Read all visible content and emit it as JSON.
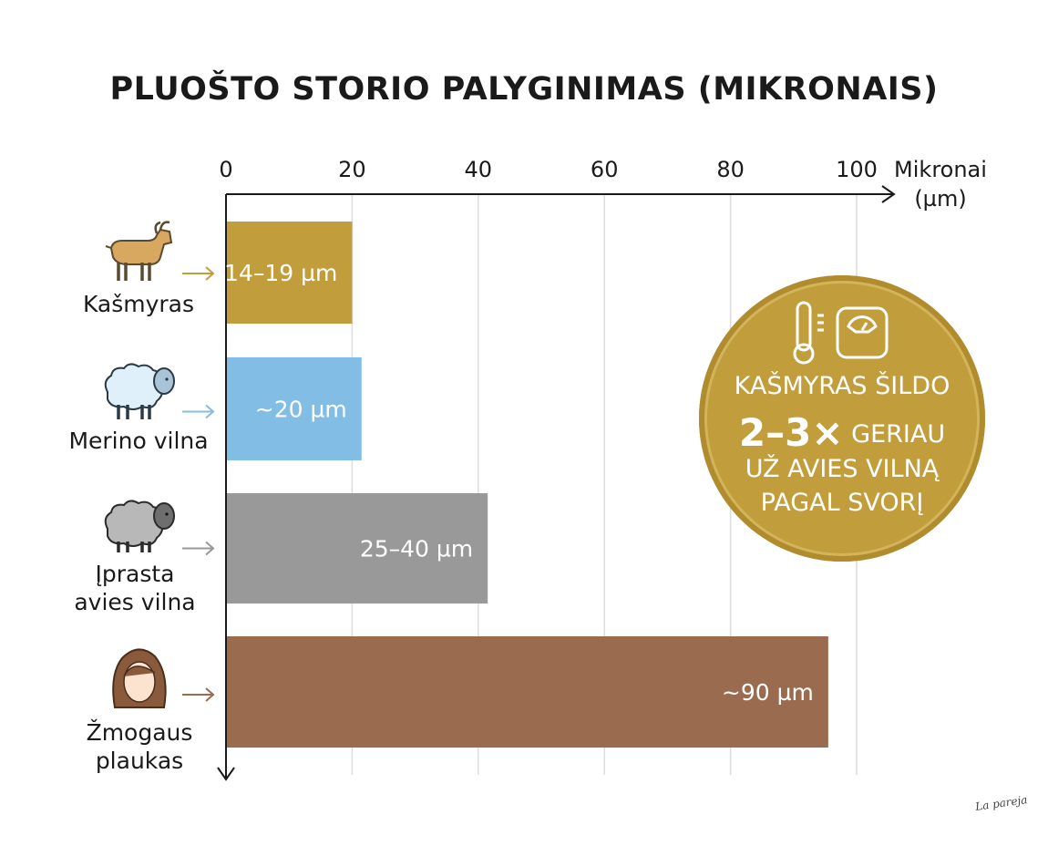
{
  "chart_data": {
    "type": "bar",
    "orientation": "horizontal",
    "title": "PLUOŠTO STORIO PALYGINIMAS (MIKRONAIS)",
    "xlabel_line1": "Mikronai",
    "xlabel_line2": "(µm)",
    "xlim": [
      0,
      100
    ],
    "xticks": [
      0,
      20,
      40,
      60,
      80,
      100
    ],
    "grid": true,
    "categories": [
      {
        "label_lines": [
          "Kašmyras"
        ],
        "value": 20,
        "data_label": "14–19 µm",
        "color": "#c19d3c",
        "label_color": "#ffffff",
        "icon": "goat-icon",
        "arrow_color": "#c19d3c"
      },
      {
        "label_lines": [
          "Merino vilna"
        ],
        "value": 21.5,
        "data_label": "~20 µm",
        "color": "#82bde6",
        "label_color": "#ffffff",
        "icon": "white-sheep-icon",
        "arrow_color": "#82bde6"
      },
      {
        "label_lines": [
          "Įprasta",
          "avies vilna"
        ],
        "value": 41.5,
        "data_label": "25–40 µm",
        "color": "#999999",
        "label_color": "#ffffff",
        "icon": "gray-sheep-icon",
        "arrow_color": "#999999"
      },
      {
        "label_lines": [
          "Žmogaus",
          "plaukas"
        ],
        "value": 95.5,
        "data_label": "~90 µm",
        "color": "#9a6b4f",
        "label_color": "#ffffff",
        "icon": "woman-face-icon",
        "arrow_color": "#9a6b4f"
      }
    ]
  },
  "callout": {
    "line1": "KAŠMYRAS ŠILDO",
    "big": "2–3×",
    "line2_rest": "GERIAU",
    "line3": "UŽ AVIES VILNĄ",
    "line4": "PAGAL SVORĮ",
    "color": "#c19d3c",
    "icons": [
      "thermometer-icon",
      "scale-icon"
    ]
  },
  "signature": "La pareja"
}
